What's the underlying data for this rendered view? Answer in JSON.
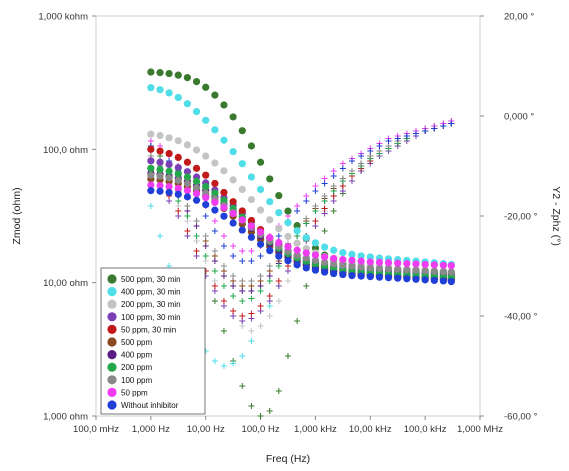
{
  "chart_data": {
    "type": "scatter",
    "xlabel": "Freq (Hz)",
    "ylabel_left": "Zmod (ohm)",
    "ylabel_right": "Y2 - Zphz (°)",
    "x_scale": "log",
    "xlim": [
      0.1,
      1000000
    ],
    "y_left_scale": "log",
    "y_left_lim": [
      1,
      1000
    ],
    "y_right_lim": [
      -60,
      20
    ],
    "grid": false,
    "legend_position": "lower-left",
    "x_ticks": [
      "100,0 mHz",
      "1,000 Hz",
      "10,00 Hz",
      "100,0 Hz",
      "1,000 kHz",
      "10,00 kHz",
      "100,0 kHz",
      "1,000 MHz"
    ],
    "y_left_ticks": [
      "1,000 ohm",
      "10,00 ohm",
      "100,0 ohm",
      "1,000 kohm"
    ],
    "y_right_ticks": [
      "-60,00 °",
      "-40,00 °",
      "-20,00 °",
      "0,000 °",
      "20,00 °"
    ],
    "frequencies_hz": [
      1,
      1.47,
      2.15,
      3.16,
      4.64,
      6.81,
      10,
      14.7,
      21.5,
      31.6,
      46.4,
      68.1,
      100,
      147,
      215,
      316,
      464,
      681,
      1000,
      1470,
      2150,
      3160,
      4640,
      6810,
      10000,
      14700,
      21500,
      31600,
      46400,
      68100,
      100000,
      147000,
      215000,
      300000
    ],
    "series": [
      {
        "name": "500 ppm, 30 min",
        "color": "#3a7a2e",
        "zmod_ohm": [
          380,
          376,
          370,
          360,
          345,
          322,
          292,
          255,
          215,
          175,
          138,
          106,
          80,
          60,
          45,
          34.4,
          26.8,
          21.6,
          18.2,
          16.1,
          14.8,
          14.0,
          13.5,
          13.1,
          12.8,
          12.6,
          12.4,
          12.3,
          12.2,
          12.1,
          12.0,
          11.9,
          11.8,
          11.7
        ],
        "phase_deg": [
          -6,
          -8,
          -11,
          -15,
          -20,
          -25,
          -31,
          -37,
          -43,
          -49,
          -54,
          -58,
          -60,
          -59,
          -55,
          -48,
          -41,
          -34,
          -28,
          -23,
          -19,
          -15.5,
          -13,
          -11,
          -9,
          -7.5,
          -6,
          -5,
          -4,
          -3,
          -2.5,
          -2,
          -1.5,
          -1
        ]
      },
      {
        "name": "400 ppm, 30 min",
        "color": "#4fdde8",
        "zmod_ohm": [
          290,
          280,
          265,
          245,
          220,
          192,
          165,
          140,
          117,
          96,
          78,
          62,
          50,
          40.5,
          33.5,
          28.2,
          24.5,
          21.8,
          19.9,
          18.5,
          17.5,
          16.8,
          16.3,
          15.9,
          15.6,
          15.3,
          15.1,
          14.9,
          14.7,
          14.5,
          14.3,
          14.1,
          13.9,
          13.7
        ],
        "phase_deg": [
          -18,
          -24,
          -30,
          -35,
          -40,
          -44,
          -47,
          -49,
          -50,
          -49.5,
          -48,
          -45,
          -42,
          -38,
          -34,
          -30,
          -27,
          -24,
          -21,
          -18.5,
          -16,
          -14,
          -12,
          -10.5,
          -9,
          -7.5,
          -6,
          -5,
          -4,
          -3.5,
          -3,
          -2.5,
          -2,
          -1.5
        ]
      },
      {
        "name": "200 ppm, 30 min",
        "color": "#c4c4c4",
        "zmod_ohm": [
          130,
          127,
          122,
          116,
          108,
          99,
          89,
          79,
          69,
          59,
          50,
          42,
          35,
          29.6,
          25.4,
          22.2,
          19.8,
          18.0,
          16.7,
          15.7,
          15.0,
          14.4,
          14.0,
          13.7,
          13.4,
          13.2,
          13.0,
          12.8,
          12.6,
          12.5,
          12.4,
          12.3,
          12.2,
          12.1
        ],
        "phase_deg": [
          -10,
          -12,
          -15,
          -18,
          -21,
          -25,
          -29,
          -33,
          -37,
          -40,
          -42,
          -43,
          -42,
          -40,
          -37,
          -33,
          -29,
          -25,
          -22,
          -19,
          -16,
          -14,
          -12,
          -10.5,
          -9,
          -7.5,
          -6.5,
          -5.5,
          -4.5,
          -3.5,
          -3,
          -2.5,
          -2,
          -1.5
        ]
      },
      {
        "name": "100 ppm, 30 min",
        "color": "#7b3fb5",
        "zmod_ohm": [
          82,
          80,
          77,
          73,
          68,
          62,
          56,
          49.5,
          43.5,
          38,
          33,
          28.6,
          24.8,
          21.7,
          19.3,
          17.4,
          16.0,
          15.0,
          14.2,
          13.6,
          13.2,
          12.9,
          12.7,
          12.5,
          12.3,
          12.2,
          12.1,
          12.0,
          11.9,
          11.8,
          11.7,
          11.6,
          11.5,
          11.4
        ],
        "phase_deg": [
          -12,
          -14,
          -17,
          -20,
          -24,
          -28,
          -32,
          -35,
          -38,
          -40,
          -41,
          -40.5,
          -39,
          -37,
          -34,
          -31,
          -28,
          -25,
          -22,
          -19.5,
          -17,
          -15,
          -13,
          -11,
          -9.5,
          -8,
          -7,
          -6,
          -5,
          -4,
          -3,
          -2.5,
          -2,
          -1.5
        ]
      },
      {
        "name": "50 ppm, 30 min",
        "color": "#c21a1a",
        "zmod_ohm": [
          100,
          97,
          93,
          87,
          80,
          72,
          64,
          55.5,
          47.5,
          40.5,
          34.5,
          29.3,
          25.0,
          21.6,
          19.0,
          17.0,
          15.5,
          14.4,
          13.6,
          13.0,
          12.6,
          12.3,
          12.1,
          11.9,
          11.7,
          11.6,
          11.5,
          11.4,
          11.3,
          11.2,
          11.1,
          11.0,
          10.9,
          10.8
        ],
        "phase_deg": [
          -11,
          -13,
          -16,
          -19,
          -23,
          -27,
          -31,
          -34,
          -37,
          -39,
          -40,
          -39.5,
          -38,
          -36,
          -33,
          -30,
          -27,
          -24,
          -21,
          -18.5,
          -16,
          -14,
          -12,
          -10.5,
          -9,
          -7.5,
          -6.5,
          -5.5,
          -4.5,
          -3.5,
          -3,
          -2.5,
          -2,
          -1.5
        ]
      },
      {
        "name": "500 ppm",
        "color": "#8b4a1e",
        "zmod_ohm": [
          60,
          59,
          57.5,
          55.5,
          52.5,
          49,
          45,
          40.5,
          36,
          31.5,
          27.5,
          24,
          21,
          18.6,
          16.8,
          15.4,
          14.3,
          13.5,
          12.9,
          12.4,
          12.1,
          11.8,
          11.6,
          11.4,
          11.3,
          11.2,
          11.1,
          11.0,
          10.9,
          10.8,
          10.7,
          10.6,
          10.5,
          10.4
        ],
        "phase_deg": [
          -8,
          -10,
          -12,
          -15,
          -18,
          -21,
          -25,
          -28,
          -31,
          -33,
          -34,
          -34,
          -33,
          -31,
          -29,
          -26,
          -23,
          -21,
          -18.5,
          -16.5,
          -14.5,
          -12.5,
          -11,
          -9.5,
          -8,
          -7,
          -6,
          -5,
          -4,
          -3.5,
          -3,
          -2.5,
          -2,
          -1.5
        ]
      },
      {
        "name": "400 ppm",
        "color": "#5a1e82",
        "zmod_ohm": [
          66,
          65,
          63,
          60.5,
          57.5,
          53.5,
          49,
          44,
          39,
          34,
          29.5,
          25.6,
          22.3,
          19.6,
          17.5,
          15.9,
          14.7,
          13.8,
          13.1,
          12.6,
          12.2,
          11.9,
          11.7,
          11.5,
          11.4,
          11.3,
          11.2,
          11.1,
          11.0,
          10.9,
          10.8,
          10.7,
          10.6,
          10.5
        ],
        "phase_deg": [
          -9,
          -11,
          -13,
          -16,
          -19,
          -22,
          -26,
          -29,
          -32,
          -34,
          -35,
          -35,
          -34,
          -32,
          -29.5,
          -27,
          -24,
          -21.5,
          -19,
          -17,
          -15,
          -13,
          -11.5,
          -10,
          -8.5,
          -7.5,
          -6.5,
          -5.5,
          -4.5,
          -3.5,
          -3,
          -2.5,
          -2,
          -1.5
        ]
      },
      {
        "name": "200 ppm",
        "color": "#22a84a",
        "zmod_ohm": [
          72,
          70.5,
          68.5,
          65.5,
          62,
          57.5,
          52.5,
          47,
          41.5,
          36,
          31,
          26.7,
          23.1,
          20.3,
          18.1,
          16.5,
          15.3,
          14.4,
          13.7,
          13.2,
          12.8,
          12.5,
          12.3,
          12.1,
          11.9,
          11.8,
          11.7,
          11.6,
          11.5,
          11.4,
          11.3,
          11.2,
          11.1,
          11.0
        ],
        "phase_deg": [
          -9,
          -11,
          -14,
          -17,
          -20,
          -24,
          -28,
          -31,
          -34,
          -36,
          -37,
          -36.5,
          -35,
          -33,
          -30,
          -27,
          -24,
          -21.5,
          -19,
          -17,
          -15,
          -13,
          -11.5,
          -10,
          -8.5,
          -7.5,
          -6.5,
          -5.5,
          -4.5,
          -3.5,
          -3,
          -2.5,
          -2,
          -1.5
        ]
      },
      {
        "name": "100 ppm",
        "color": "#8a8a8a",
        "zmod_ohm": [
          64,
          63,
          61,
          58.5,
          55.5,
          51.5,
          47,
          42.5,
          38,
          33.5,
          29.5,
          26,
          23,
          20.6,
          18.7,
          17.2,
          16.1,
          15.3,
          14.7,
          14.2,
          13.8,
          13.5,
          13.3,
          13.1,
          12.9,
          12.8,
          12.7,
          12.6,
          12.5,
          12.4,
          12.3,
          12.2,
          12.1,
          12.0
        ],
        "phase_deg": [
          -8,
          -10,
          -12,
          -15,
          -18,
          -21,
          -24,
          -27,
          -30,
          -32,
          -33,
          -33,
          -32,
          -30,
          -28,
          -25.5,
          -23,
          -20.5,
          -18,
          -16,
          -14,
          -12.5,
          -11,
          -9.5,
          -8,
          -7,
          -6,
          -5,
          -4,
          -3.5,
          -3,
          -2.5,
          -2,
          -1.5
        ]
      },
      {
        "name": "50 ppm",
        "color": "#f03cf0",
        "zmod_ohm": [
          54,
          53.5,
          52.5,
          51,
          49,
          46.5,
          43.5,
          40,
          36.5,
          33,
          29.6,
          26.6,
          24,
          21.8,
          20,
          18.6,
          17.5,
          16.7,
          16.1,
          15.6,
          15.2,
          14.9,
          14.7,
          14.5,
          14.3,
          14.2,
          14.1,
          14.0,
          13.9,
          13.8,
          13.7,
          13.6,
          13.5,
          13.4
        ],
        "phase_deg": [
          -5,
          -6,
          -8,
          -10,
          -12,
          -15,
          -18,
          -21,
          -24,
          -26,
          -27,
          -27,
          -26,
          -24,
          -22,
          -20,
          -18,
          -16,
          -14,
          -12.5,
          -11,
          -9.5,
          -8.5,
          -7.5,
          -6.5,
          -5.5,
          -4.5,
          -4,
          -3.5,
          -3,
          -2.5,
          -2,
          -1.5,
          -1
        ]
      },
      {
        "name": "Without inhibitor",
        "color": "#1f3fd6",
        "zmod_ohm": [
          49,
          48.5,
          47.5,
          46,
          44,
          41.5,
          38.5,
          35,
          31.5,
          28,
          24.8,
          21.9,
          19.4,
          17.4,
          15.8,
          14.6,
          13.6,
          12.9,
          12.4,
          12.0,
          11.7,
          11.5,
          11.3,
          11.2,
          11.1,
          11.0,
          10.9,
          10.8,
          10.7,
          10.6,
          10.5,
          10.4,
          10.3,
          10.2
        ],
        "phase_deg": [
          -6,
          -7,
          -9,
          -11,
          -14,
          -17,
          -20,
          -23,
          -26,
          -28,
          -29,
          -29,
          -28,
          -26,
          -24,
          -21.5,
          -19,
          -17,
          -15,
          -13.5,
          -12,
          -10.5,
          -9,
          -8,
          -7,
          -6,
          -5,
          -4.5,
          -4,
          -3.5,
          -3,
          -2.5,
          -2,
          -1.5
        ]
      }
    ]
  }
}
